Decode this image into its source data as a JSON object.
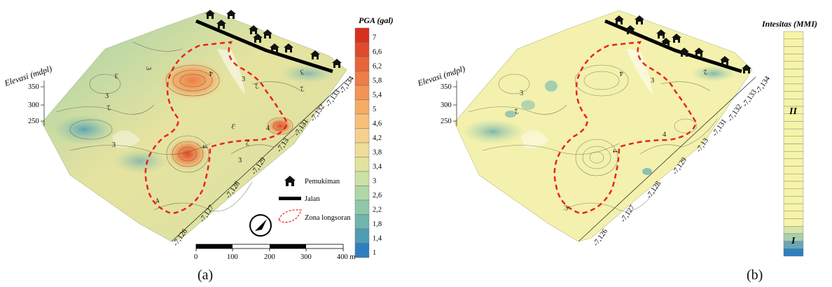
{
  "panel_a": {
    "caption": "(a)",
    "elevation_label": "Elevasi (mdpl)",
    "elevation_ticks": [
      "350",
      "300",
      "250"
    ],
    "coord_ticks": [
      "-7,126",
      "-7,127",
      "-7,128",
      "-7,129",
      "-7,13",
      "-7,131",
      "-7,132",
      "-7,133",
      "-7,134"
    ],
    "scale_title": "PGA (gal)",
    "scale_values": [
      "7",
      "6,6",
      "6,2",
      "5,8",
      "5,4",
      "5",
      "4,6",
      "4,2",
      "3,8",
      "3,4",
      "3",
      "2,6",
      "2,2",
      "1,8",
      "1,4",
      "1"
    ],
    "scale_colors": [
      "#d7301f",
      "#e04a2c",
      "#e8643a",
      "#ee7d47",
      "#f29455",
      "#f5ab66",
      "#f6c079",
      "#f4d18c",
      "#eedd98",
      "#e2e29f",
      "#cde1a3",
      "#b0d7a6",
      "#8fc8a9",
      "#6fb4ad",
      "#4f9db5",
      "#2f7fbf"
    ],
    "legend": {
      "settlement": "Pemukiman",
      "road": "Jalan",
      "landslide_zone": "Zona longsoran"
    },
    "scalebar_labels": [
      "0",
      "100",
      "200",
      "300",
      "400 m"
    ],
    "contour_labels": [
      "3",
      "3",
      "2",
      "3",
      "3",
      "4",
      "3",
      "2",
      "3",
      "2",
      "3",
      "4",
      "4",
      "3",
      "2",
      "4"
    ]
  },
  "panel_b": {
    "caption": "(b)",
    "elevation_label": "Elevasi (mdpl)",
    "elevation_ticks": [
      "350",
      "300",
      "250"
    ],
    "coord_ticks": [
      "-7,126",
      "-7,127",
      "-7,128",
      "-7,129",
      "-7,13",
      "-7,131",
      "-7,132",
      "-7,133",
      "-7,134"
    ],
    "scale_title": "Intesitas (MMI)",
    "scale_marks": [
      "II",
      "I"
    ],
    "contour_labels": [
      "3",
      "2",
      "4",
      "3",
      "2",
      "4",
      "3",
      "4"
    ]
  },
  "colors": {
    "road": "#000000",
    "landslide_zone": "#e8241c",
    "mmi_fill": "#f6f4a8",
    "mmi_low": "#2f7fbf"
  },
  "icons": [
    "house-icon",
    "compass-icon"
  ]
}
